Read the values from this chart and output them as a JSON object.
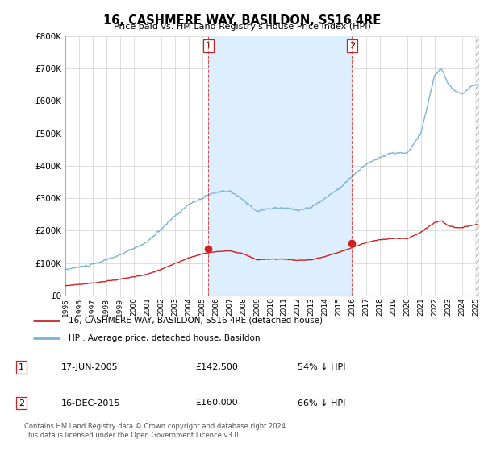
{
  "title": "16, CASHMERE WAY, BASILDON, SS16 4RE",
  "subtitle": "Price paid vs. HM Land Registry's House Price Index (HPI)",
  "ylim": [
    0,
    800000
  ],
  "yticks": [
    0,
    100000,
    200000,
    300000,
    400000,
    500000,
    600000,
    700000,
    800000
  ],
  "ytick_labels": [
    "£0",
    "£100K",
    "£200K",
    "£300K",
    "£400K",
    "£500K",
    "£600K",
    "£700K",
    "£800K"
  ],
  "sale1_x": 2005.46,
  "sale1_price": 142500,
  "sale2_x": 2015.96,
  "sale2_price": 160000,
  "hpi_color": "#7ab4d8",
  "price_color": "#cc2222",
  "vline_color": "#cc3333",
  "grid_color": "#d0d0d0",
  "shade_color": "#ddeeff",
  "legend_label_price": "16, CASHMERE WAY, BASILDON, SS16 4RE (detached house)",
  "legend_label_hpi": "HPI: Average price, detached house, Basildon",
  "footer": "Contains HM Land Registry data © Crown copyright and database right 2024.\nThis data is licensed under the Open Government Licence v3.0.",
  "table_rows": [
    {
      "num": "1",
      "date": "17-JUN-2005",
      "price": "£142,500",
      "pct": "54% ↓ HPI"
    },
    {
      "num": "2",
      "date": "16-DEC-2015",
      "price": "£160,000",
      "pct": "66% ↓ HPI"
    }
  ],
  "xmin": 1995.0,
  "xmax": 2025.25
}
